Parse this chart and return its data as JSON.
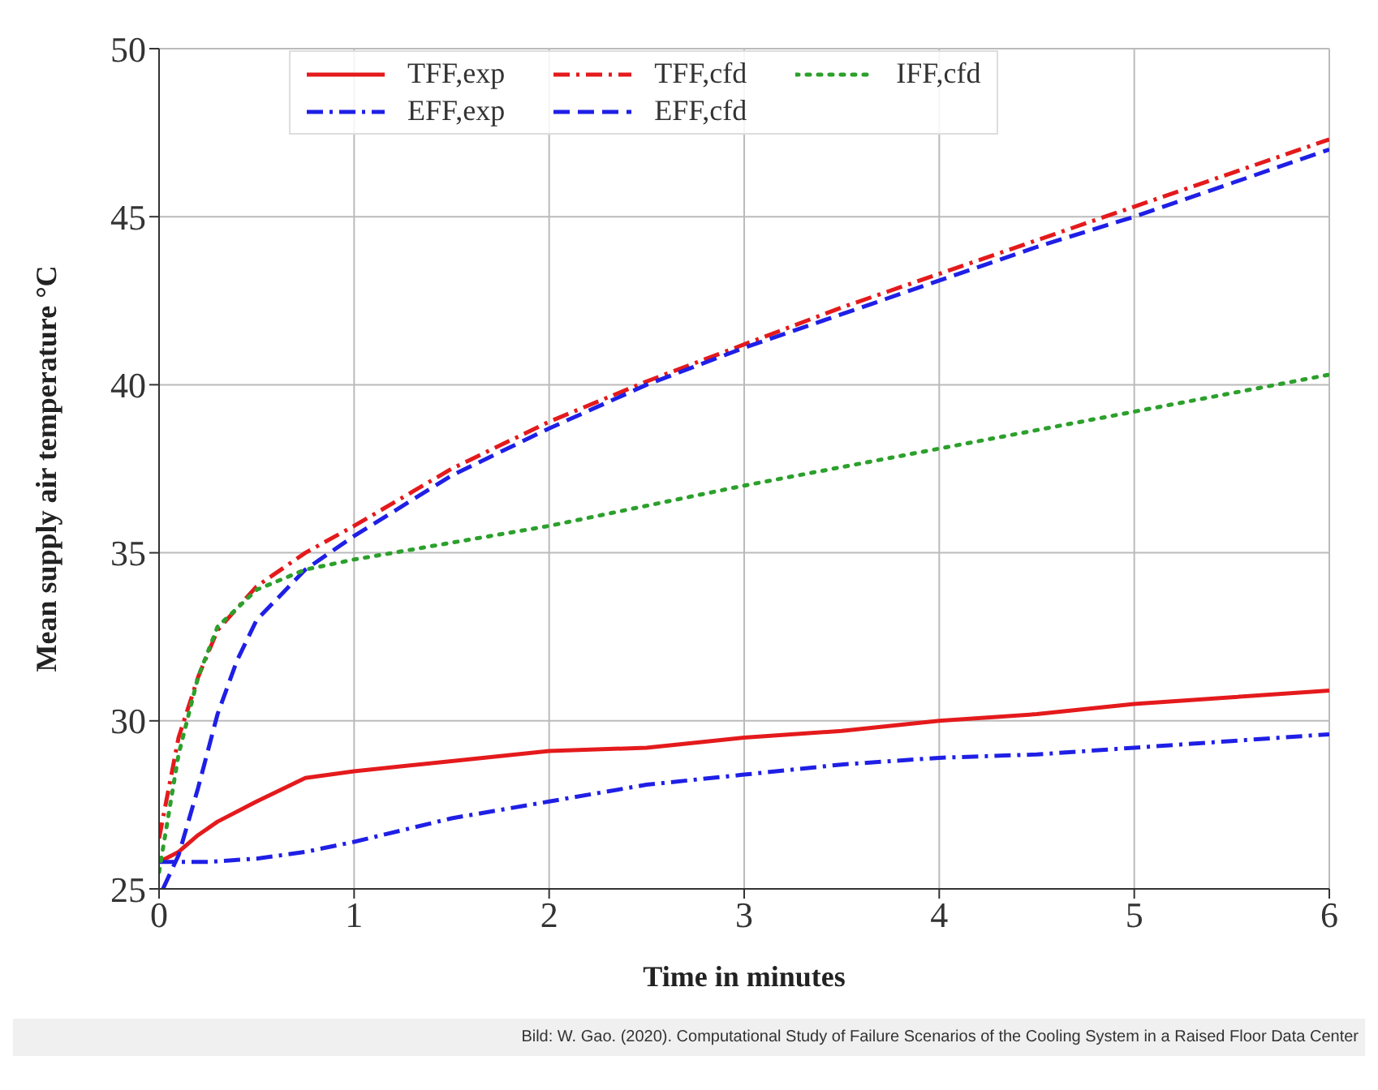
{
  "chart_data": {
    "type": "line",
    "xlabel": "Time in minutes",
    "ylabel": "Mean supply air temperature °C",
    "xlim": [
      0,
      6
    ],
    "xticks": [
      0,
      1,
      2,
      3,
      4,
      5,
      6
    ],
    "ylim": [
      25,
      50
    ],
    "yticks": [
      25,
      30,
      35,
      40,
      45,
      50
    ],
    "grid": true,
    "legend": "top",
    "marker": "none",
    "annotations": [
      "Bild: W. Gao. (2020). Computational Study of Failure Scenarios of the Cooling System in a Raised Floor Data Center"
    ],
    "series": [
      {
        "name": "TFF,exp",
        "color": "#e41a1c",
        "line_style": "solid",
        "x": [
          0,
          0.1,
          0.2,
          0.3,
          0.5,
          0.75,
          1,
          1.5,
          2,
          2.5,
          3,
          3.5,
          4,
          4.5,
          5,
          5.5,
          6
        ],
        "values": [
          25.8,
          26.1,
          26.6,
          27,
          27.6,
          28.3,
          28.5,
          28.8,
          29.1,
          29.2,
          29.5,
          29.7,
          30,
          30.2,
          30.5,
          30.7,
          30.9
        ]
      },
      {
        "name": "EFF,exp",
        "color": "#1f1fe6",
        "line_style": "dashdot",
        "x": [
          0,
          0.25,
          0.5,
          0.75,
          1,
          1.5,
          2,
          2.5,
          3,
          3.5,
          4,
          4.5,
          5,
          5.5,
          6
        ],
        "values": [
          25.8,
          25.8,
          25.9,
          26.1,
          26.4,
          27.1,
          27.6,
          28.1,
          28.4,
          28.7,
          28.9,
          29,
          29.2,
          29.4,
          29.6
        ]
      },
      {
        "name": "TFF,cfd",
        "color": "#e41a1c",
        "line_style": "dashdot",
        "x": [
          0,
          0.05,
          0.1,
          0.2,
          0.3,
          0.5,
          0.75,
          1,
          1.5,
          2,
          2.5,
          3,
          3.5,
          4,
          4.5,
          5,
          5.5,
          6
        ],
        "values": [
          26.5,
          28,
          29.5,
          31.3,
          32.7,
          34,
          35,
          35.8,
          37.5,
          38.9,
          40.1,
          41.2,
          42.3,
          43.3,
          44.3,
          45.3,
          46.3,
          47.3
        ]
      },
      {
        "name": "EFF,cfd",
        "color": "#1f1fe6",
        "line_style": "dashed",
        "x": [
          0.02,
          0.1,
          0.2,
          0.3,
          0.4,
          0.5,
          0.75,
          1,
          1.5,
          2,
          2.5,
          3,
          3.5,
          4,
          4.5,
          5,
          5.5,
          6
        ],
        "values": [
          25,
          26,
          28,
          30.2,
          31.8,
          33,
          34.5,
          35.5,
          37.3,
          38.7,
          40,
          41.1,
          42.1,
          43.1,
          44.1,
          45,
          46,
          47
        ]
      },
      {
        "name": "IFF,cfd",
        "color": "#2ca02c",
        "line_style": "dotted",
        "x": [
          0,
          0.1,
          0.2,
          0.3,
          0.5,
          0.75,
          1,
          2,
          3,
          4,
          5,
          6
        ],
        "values": [
          25.5,
          29,
          31.3,
          32.8,
          33.9,
          34.5,
          34.8,
          35.8,
          37,
          38.1,
          39.2,
          40.3
        ]
      }
    ]
  }
}
